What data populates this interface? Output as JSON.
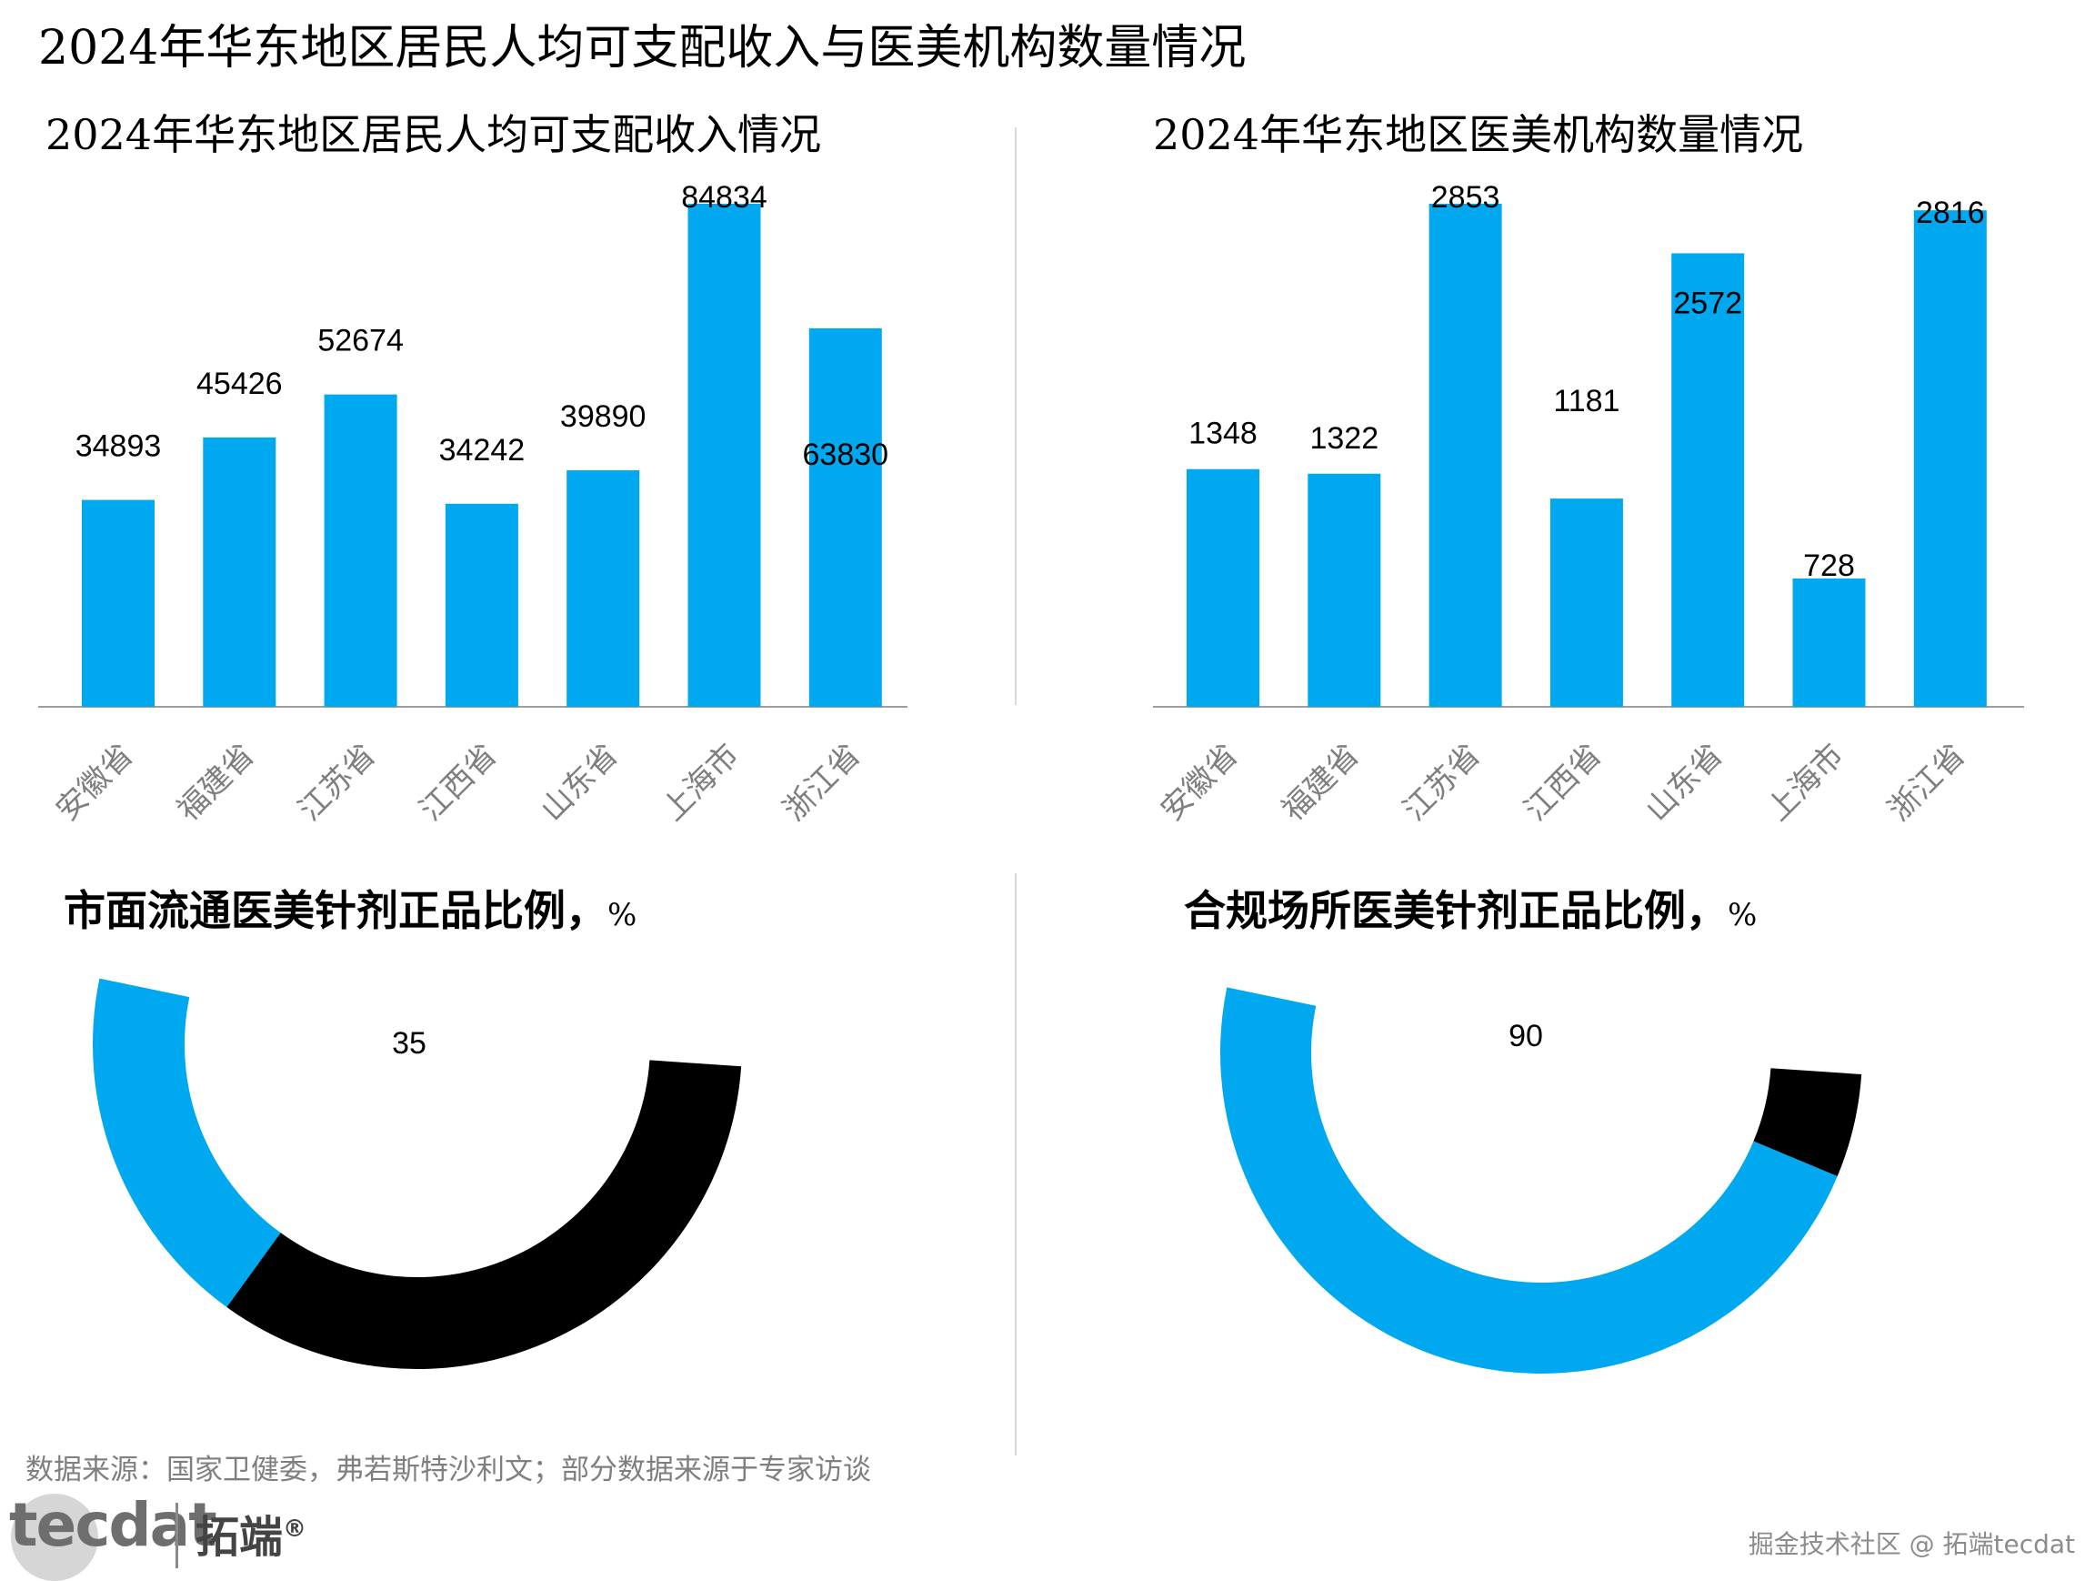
{
  "main_title": "2024年华东地区居民人均可支配收入与医美机构数量情况",
  "colors": {
    "bar": "#00A8F0",
    "accent": "#00A8F0",
    "dark": "#000000",
    "axis": "#9e9e9e",
    "divider": "#d9d9d9"
  },
  "chart_data": [
    {
      "type": "bar",
      "title": "2024年华东地区居民人均可支配收入情况",
      "categories": [
        "安徽省",
        "福建省",
        "江苏省",
        "江西省",
        "山东省",
        "上海市",
        "浙江省"
      ],
      "values": [
        34893,
        45426,
        52674,
        34242,
        39890,
        84834,
        63830
      ],
      "data_labels": [
        "34893",
        "45426",
        "52674",
        "34242",
        "39890",
        "84834",
        "63830"
      ],
      "ylim": [
        0,
        84834
      ],
      "grid": false
    },
    {
      "type": "bar",
      "title": "2024年华东地区医美机构数量情况",
      "categories": [
        "安徽省",
        "福建省",
        "江苏省",
        "江西省",
        "山东省",
        "上海市",
        "浙江省"
      ],
      "values": [
        1348,
        1322,
        2853,
        1181,
        2572,
        728,
        2816
      ],
      "data_labels": [
        "1348",
        "1322",
        "2853",
        "1181",
        "2572",
        "728",
        "2816"
      ],
      "ylim": [
        0,
        2853
      ],
      "grid": false
    },
    {
      "type": "pie",
      "title": "市面流通医美针剂正品比例，",
      "unit": "%",
      "values": [
        35,
        65
      ],
      "data_label": "35",
      "colors": [
        "#00A8F0",
        "#000000"
      ]
    },
    {
      "type": "pie",
      "title": "合规场所医美针剂正品比例，",
      "unit": "%",
      "values": [
        90,
        10
      ],
      "data_label": "90",
      "colors": [
        "#00A8F0",
        "#000000"
      ]
    }
  ],
  "source_note": "数据来源：国家卫健委，弗若斯特沙利文；部分数据来源于专家访谈",
  "logo": {
    "latin": "tecdat",
    "chinese": "拓端",
    "mark": "®"
  },
  "watermark": "掘金技术社区 @ 拓端tecdat"
}
